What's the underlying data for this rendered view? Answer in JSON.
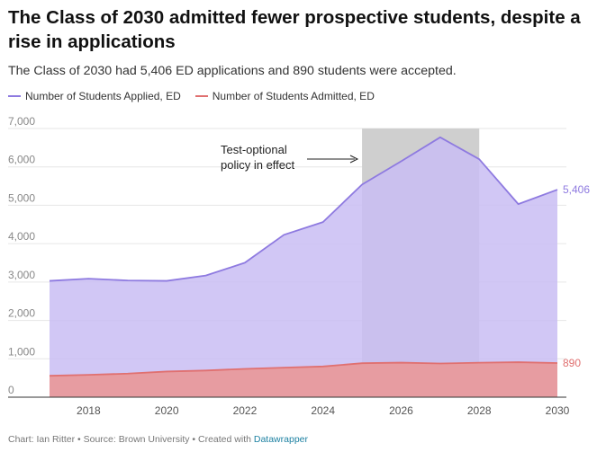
{
  "chart_data": {
    "type": "area",
    "title": "The Class of 2030 admitted fewer prospective students, despite a rise in applications",
    "subtitle": "The Class of 2030 had 5,406 ED applications and 890 students were accepted.",
    "x": [
      2017,
      2018,
      2019,
      2020,
      2021,
      2022,
      2023,
      2024,
      2025,
      2026,
      2027,
      2028,
      2029,
      2030
    ],
    "series": [
      {
        "name": "Number of Students Applied, ED",
        "color": "#8e7ae0",
        "fill": "#c9bdf3",
        "values": [
          3030,
          3088,
          3040,
          3030,
          3170,
          3502,
          4230,
          4562,
          5540,
          6146,
          6770,
          6200,
          5030,
          5406
        ]
      },
      {
        "name": "Number of Students Admitted, ED",
        "color": "#e07070",
        "fill": "#e89a9c",
        "values": [
          557,
          583,
          614,
          669,
          695,
          738,
          769,
          800,
          885,
          900,
          878,
          898,
          912,
          890
        ]
      }
    ],
    "xlim": [
      2017,
      2030
    ],
    "ylim": [
      0,
      7000
    ],
    "y_ticks": [
      "0",
      "1,000",
      "2,000",
      "3,000",
      "4,000",
      "5,000",
      "6,000",
      "7,000"
    ],
    "y_tick_values": [
      0,
      1000,
      2000,
      3000,
      4000,
      5000,
      6000,
      7000
    ],
    "x_ticks": [
      2018,
      2020,
      2022,
      2024,
      2026,
      2028,
      2030
    ],
    "highlight_range": [
      2025,
      2028
    ],
    "highlight_color": "#cfcfcf",
    "annotation": {
      "line1": "Test-optional",
      "line2": "policy in effect"
    },
    "end_labels": {
      "applied": "5,406",
      "admitted": "890"
    },
    "grid": true,
    "legend_position": "top-left"
  },
  "footer": {
    "text": "Chart: Ian Ritter • Source: Brown University • Created with ",
    "link": "Datawrapper"
  }
}
